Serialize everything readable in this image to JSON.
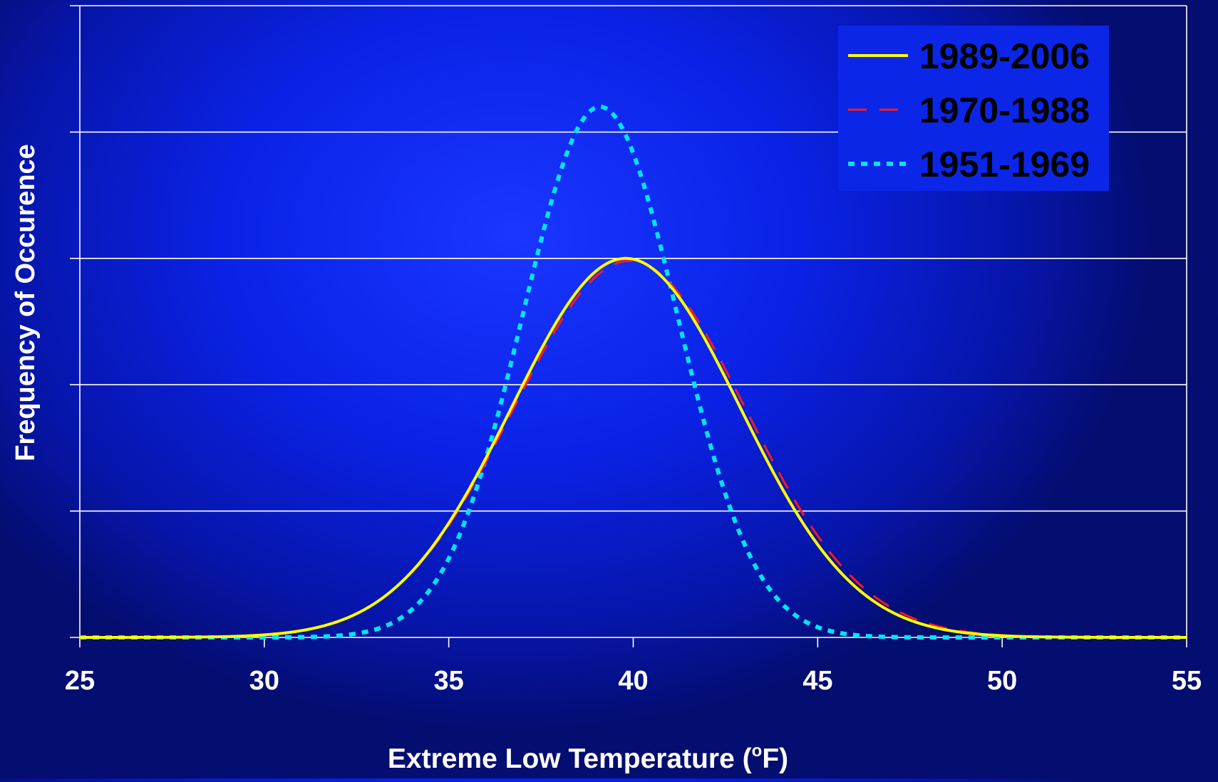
{
  "chart_data": {
    "type": "line",
    "title": "",
    "xlabel": "Extreme Low Temperature (",
    "xlabel_sup": "o",
    "xlabel_unit": "F)",
    "ylabel": "Frequency of Occurence",
    "xlim": [
      25,
      55
    ],
    "ylim": [
      0,
      5
    ],
    "x_ticks": [
      "25",
      "30",
      "35",
      "40",
      "45",
      "50",
      "55"
    ],
    "y_tick_labels_shown": false,
    "grid": "horizontal",
    "legend_position": "top-right",
    "series": [
      {
        "name": "1989-2006",
        "distribution": "normal",
        "mean": 39.8,
        "std": 3.1,
        "peak": 3.0,
        "color": "#ffff00",
        "line_style": "solid"
      },
      {
        "name": "1970-1988",
        "distribution": "normal",
        "mean": 39.9,
        "std": 3.15,
        "peak": 2.98,
        "color": "#ff1a1a",
        "line_style": "dashed"
      },
      {
        "name": "1951-1969",
        "distribution": "normal",
        "mean": 39.1,
        "std": 2.1,
        "peak": 4.2,
        "color": "#00e5ff",
        "line_style": "dotted"
      }
    ]
  }
}
